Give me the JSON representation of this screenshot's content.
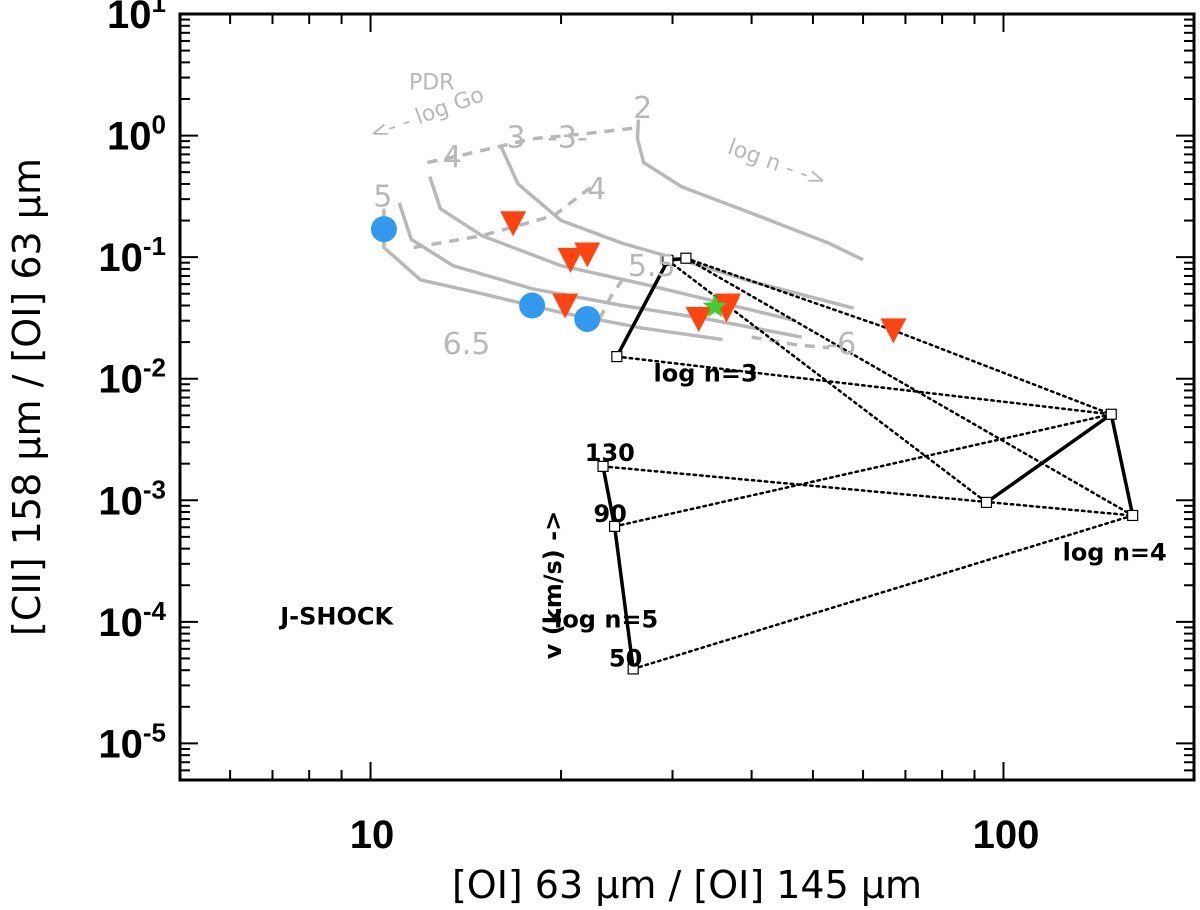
{
  "chart_data": {
    "type": "scatter",
    "xscale": "log",
    "yscale": "log",
    "xlim": [
      5,
      200
    ],
    "ylim": [
      5e-06,
      10
    ],
    "xlabel": "[OI] 63 μm / [OI] 145 μm",
    "ylabel": "[CII] 158 μm / [OI] 63 μm",
    "x_tick_labels": [
      "10",
      "100"
    ],
    "y_tick_labels": [
      {
        "base": "10",
        "exp": "1"
      },
      {
        "base": "10",
        "exp": "0"
      },
      {
        "base": "10",
        "exp": "-1"
      },
      {
        "base": "10",
        "exp": "-2"
      },
      {
        "base": "10",
        "exp": "-3"
      },
      {
        "base": "10",
        "exp": "-4"
      },
      {
        "base": "10",
        "exp": "-5"
      }
    ],
    "series": [
      {
        "name": "circles",
        "marker": "circle",
        "color": "#3399ee",
        "points": [
          [
            10.5,
            0.17
          ],
          [
            18,
            0.04
          ],
          [
            22,
            0.031
          ]
        ]
      },
      {
        "name": "triangles",
        "marker": "triangle-down",
        "color": "#ff4411",
        "points": [
          [
            16.8,
            0.19
          ],
          [
            20.7,
            0.095
          ],
          [
            22,
            0.105
          ],
          [
            20.3,
            0.04
          ],
          [
            33,
            0.031
          ],
          [
            36.5,
            0.037
          ],
          [
            36.7,
            0.04
          ],
          [
            67,
            0.025
          ]
        ]
      },
      {
        "name": "star",
        "marker": "star",
        "color": "#44cc33",
        "points": [
          [
            35,
            0.039
          ]
        ]
      }
    ],
    "pdr_grid": {
      "label": "PDR",
      "color": "#b8b8b8",
      "solid_curves": [
        {
          "label": "2",
          "points": [
            [
              26.5,
              1.35
            ],
            [
              26.4,
              0.95
            ],
            [
              27,
              0.6
            ],
            [
              31,
              0.38
            ],
            [
              40,
              0.23
            ],
            [
              53,
              0.13
            ],
            [
              60,
              0.095
            ]
          ]
        },
        {
          "label": "3",
          "points": [
            [
              16.1,
              0.8
            ],
            [
              17.1,
              0.4
            ],
            [
              20,
              0.2
            ],
            [
              25,
              0.13
            ],
            [
              32,
              0.09
            ],
            [
              40,
              0.063
            ],
            [
              58,
              0.038
            ]
          ]
        },
        {
          "label": "4",
          "points": [
            [
              12.4,
              0.46
            ],
            [
              12.9,
              0.25
            ],
            [
              15,
              0.15
            ],
            [
              20,
              0.085
            ],
            [
              27,
              0.06
            ],
            [
              34,
              0.045
            ],
            [
              47,
              0.03
            ]
          ]
        },
        {
          "label": "5",
          "points": [
            [
              11.1,
              0.28
            ],
            [
              11.6,
              0.14
            ],
            [
              13.5,
              0.085
            ],
            [
              18,
              0.055
            ],
            [
              25,
              0.04
            ],
            [
              34,
              0.031
            ],
            [
              48,
              0.022
            ]
          ]
        },
        {
          "label": "6.5",
          "points": [
            [
              10.5,
              0.25
            ],
            [
              10.5,
              0.12
            ],
            [
              12,
              0.065
            ],
            [
              15,
              0.05
            ],
            [
              20,
              0.035
            ],
            [
              27,
              0.026
            ],
            [
              36,
              0.021
            ]
          ]
        }
      ],
      "dashed_curves": [
        {
          "label": "3",
          "points": [
            [
              12.3,
              0.6
            ],
            [
              14.1,
              0.7
            ],
            [
              18,
              0.94
            ],
            [
              22,
              1.04
            ],
            [
              26,
              1.15
            ]
          ]
        },
        {
          "label": "4",
          "points": [
            [
              11.7,
              0.12
            ],
            [
              15,
              0.15
            ],
            [
              19.5,
              0.22
            ],
            [
              22.5,
              0.39
            ]
          ]
        },
        {
          "label": "5.5",
          "points": [
            [
              23,
              0.031
            ],
            [
              24,
              0.048
            ],
            [
              25.4,
              0.073
            ]
          ]
        },
        {
          "label": "6",
          "points": [
            [
              40,
              0.022
            ],
            [
              47,
              0.019
            ],
            [
              53,
              0.018
            ]
          ]
        }
      ],
      "annotations": [
        {
          "text": "PDR",
          "size": "small",
          "at": [
            11.5,
            2.4
          ]
        },
        {
          "text": "<- - log Go",
          "size": "small",
          "at": [
            10.1,
            0.9
          ]
        },
        {
          "text": "2",
          "size": "large",
          "at": [
            26,
            1.4
          ]
        },
        {
          "text": "3",
          "size": "large",
          "at": [
            16.4,
            0.8
          ]
        },
        {
          "text": "-3-",
          "size": "large",
          "at": [
            19,
            0.8
          ]
        },
        {
          "text": "4",
          "size": "large",
          "at": [
            13,
            0.55
          ]
        },
        {
          "text": "4",
          "size": "large",
          "at": [
            22,
            0.3
          ]
        },
        {
          "text": "5",
          "size": "large",
          "at": [
            10.1,
            0.26
          ]
        },
        {
          "text": "log n - ->",
          "size": "small",
          "at": [
            36.5,
            0.72
          ]
        },
        {
          "text": "5.5",
          "size": "large",
          "at": [
            25.5,
            0.07
          ]
        },
        {
          "text": "6.5",
          "size": "large",
          "at": [
            13,
            0.016
          ]
        },
        {
          "text": "-6",
          "size": "large",
          "at": [
            52.5,
            0.016
          ]
        }
      ]
    },
    "shock_grid": {
      "label": "J-SHOCK",
      "velocities": [
        "50",
        "90",
        "130"
      ],
      "velocity_axis_label": "v (km/s) ->",
      "density_labels": [
        "log n=3",
        "log n=4",
        "log n=5"
      ],
      "models": [
        {
          "density": "log n=3",
          "points": [
            [
              24.5,
              0.0152
            ],
            [
              29.5,
              0.094
            ],
            [
              31.5,
              0.098
            ]
          ]
        },
        {
          "density": "log n=4",
          "points": [
            [
              94,
              0.00096
            ],
            [
              148,
              0.0051
            ],
            [
              160,
              0.00075
            ]
          ]
        },
        {
          "density": "log n=5",
          "points": [
            [
              26,
              4.1e-05
            ],
            [
              24.3,
              0.00061
            ],
            [
              23.3,
              0.0019
            ]
          ]
        }
      ],
      "connectors": [
        {
          "from": [
            24.5,
            0.0152
          ],
          "to": [
            148,
            0.0051
          ]
        },
        {
          "from": [
            29.5,
            0.094
          ],
          "to": [
            94,
            0.00096
          ]
        },
        {
          "from": [
            31.5,
            0.098
          ],
          "to": [
            160,
            0.00075
          ]
        },
        {
          "from": [
            31.5,
            0.098
          ],
          "to": [
            67,
            0.025
          ]
        },
        {
          "from": [
            67,
            0.025
          ],
          "to": [
            148,
            0.0051
          ]
        },
        {
          "from": [
            26,
            4.1e-05
          ],
          "to": [
            160,
            0.00075
          ]
        },
        {
          "from": [
            24.3,
            0.00061
          ],
          "to": [
            148,
            0.0051
          ]
        },
        {
          "from": [
            23.3,
            0.0019
          ],
          "to": [
            160,
            0.00075
          ]
        }
      ],
      "annotations": [
        {
          "text": "log n=3",
          "at": [
            28,
            0.0095
          ]
        },
        {
          "text": "log n=4",
          "at": [
            124,
            0.00032
          ]
        },
        {
          "text": "log n=5",
          "at": [
            19.5,
            9e-05
          ]
        },
        {
          "text": "J-SHOCK",
          "at": [
            7.2,
            9.5e-05
          ]
        },
        {
          "text": "130",
          "at": [
            21.8,
            0.0021
          ]
        },
        {
          "text": "90",
          "at": [
            22.5,
            0.00066
          ]
        },
        {
          "text": "50",
          "at": [
            23.8,
            4.3e-05
          ]
        }
      ]
    }
  }
}
